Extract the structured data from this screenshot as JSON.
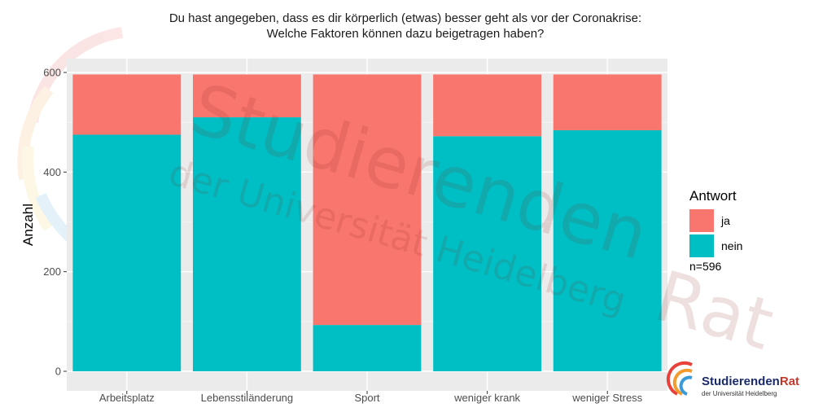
{
  "chart_data": {
    "type": "bar",
    "stacked": true,
    "title": "Du hast angegeben, dass es dir körperlich (etwas) besser geht als vor der Coronakrise:",
    "subtitle": "Welche Faktoren können dazu beigetragen haben?",
    "xlabel": "",
    "ylabel": "Anzahl",
    "categories": [
      "Arbeitsplatz",
      "Lebensstiländerung",
      "Sport",
      "weniger krank",
      "weniger Stress"
    ],
    "series": [
      {
        "name": "nein",
        "color": "#00BFC4",
        "values": [
          475,
          510,
          93,
          472,
          484
        ]
      },
      {
        "name": "ja",
        "color": "#F8766D",
        "values": [
          121,
          86,
          503,
          124,
          112
        ]
      }
    ],
    "ylim": [
      0,
      620
    ],
    "yticks": [
      0,
      200,
      400,
      600
    ],
    "grid": true,
    "legend": {
      "title": "Antwort",
      "position": "right",
      "note": "n=596"
    }
  },
  "watermark": {
    "line1": "Studierenden",
    "line2": "der Universität Heidelberg",
    "line3": "Rat"
  },
  "logo": {
    "name_part1": "Studierenden",
    "name_part2": "Rat",
    "subtitle": "der Universität Heidelberg"
  }
}
